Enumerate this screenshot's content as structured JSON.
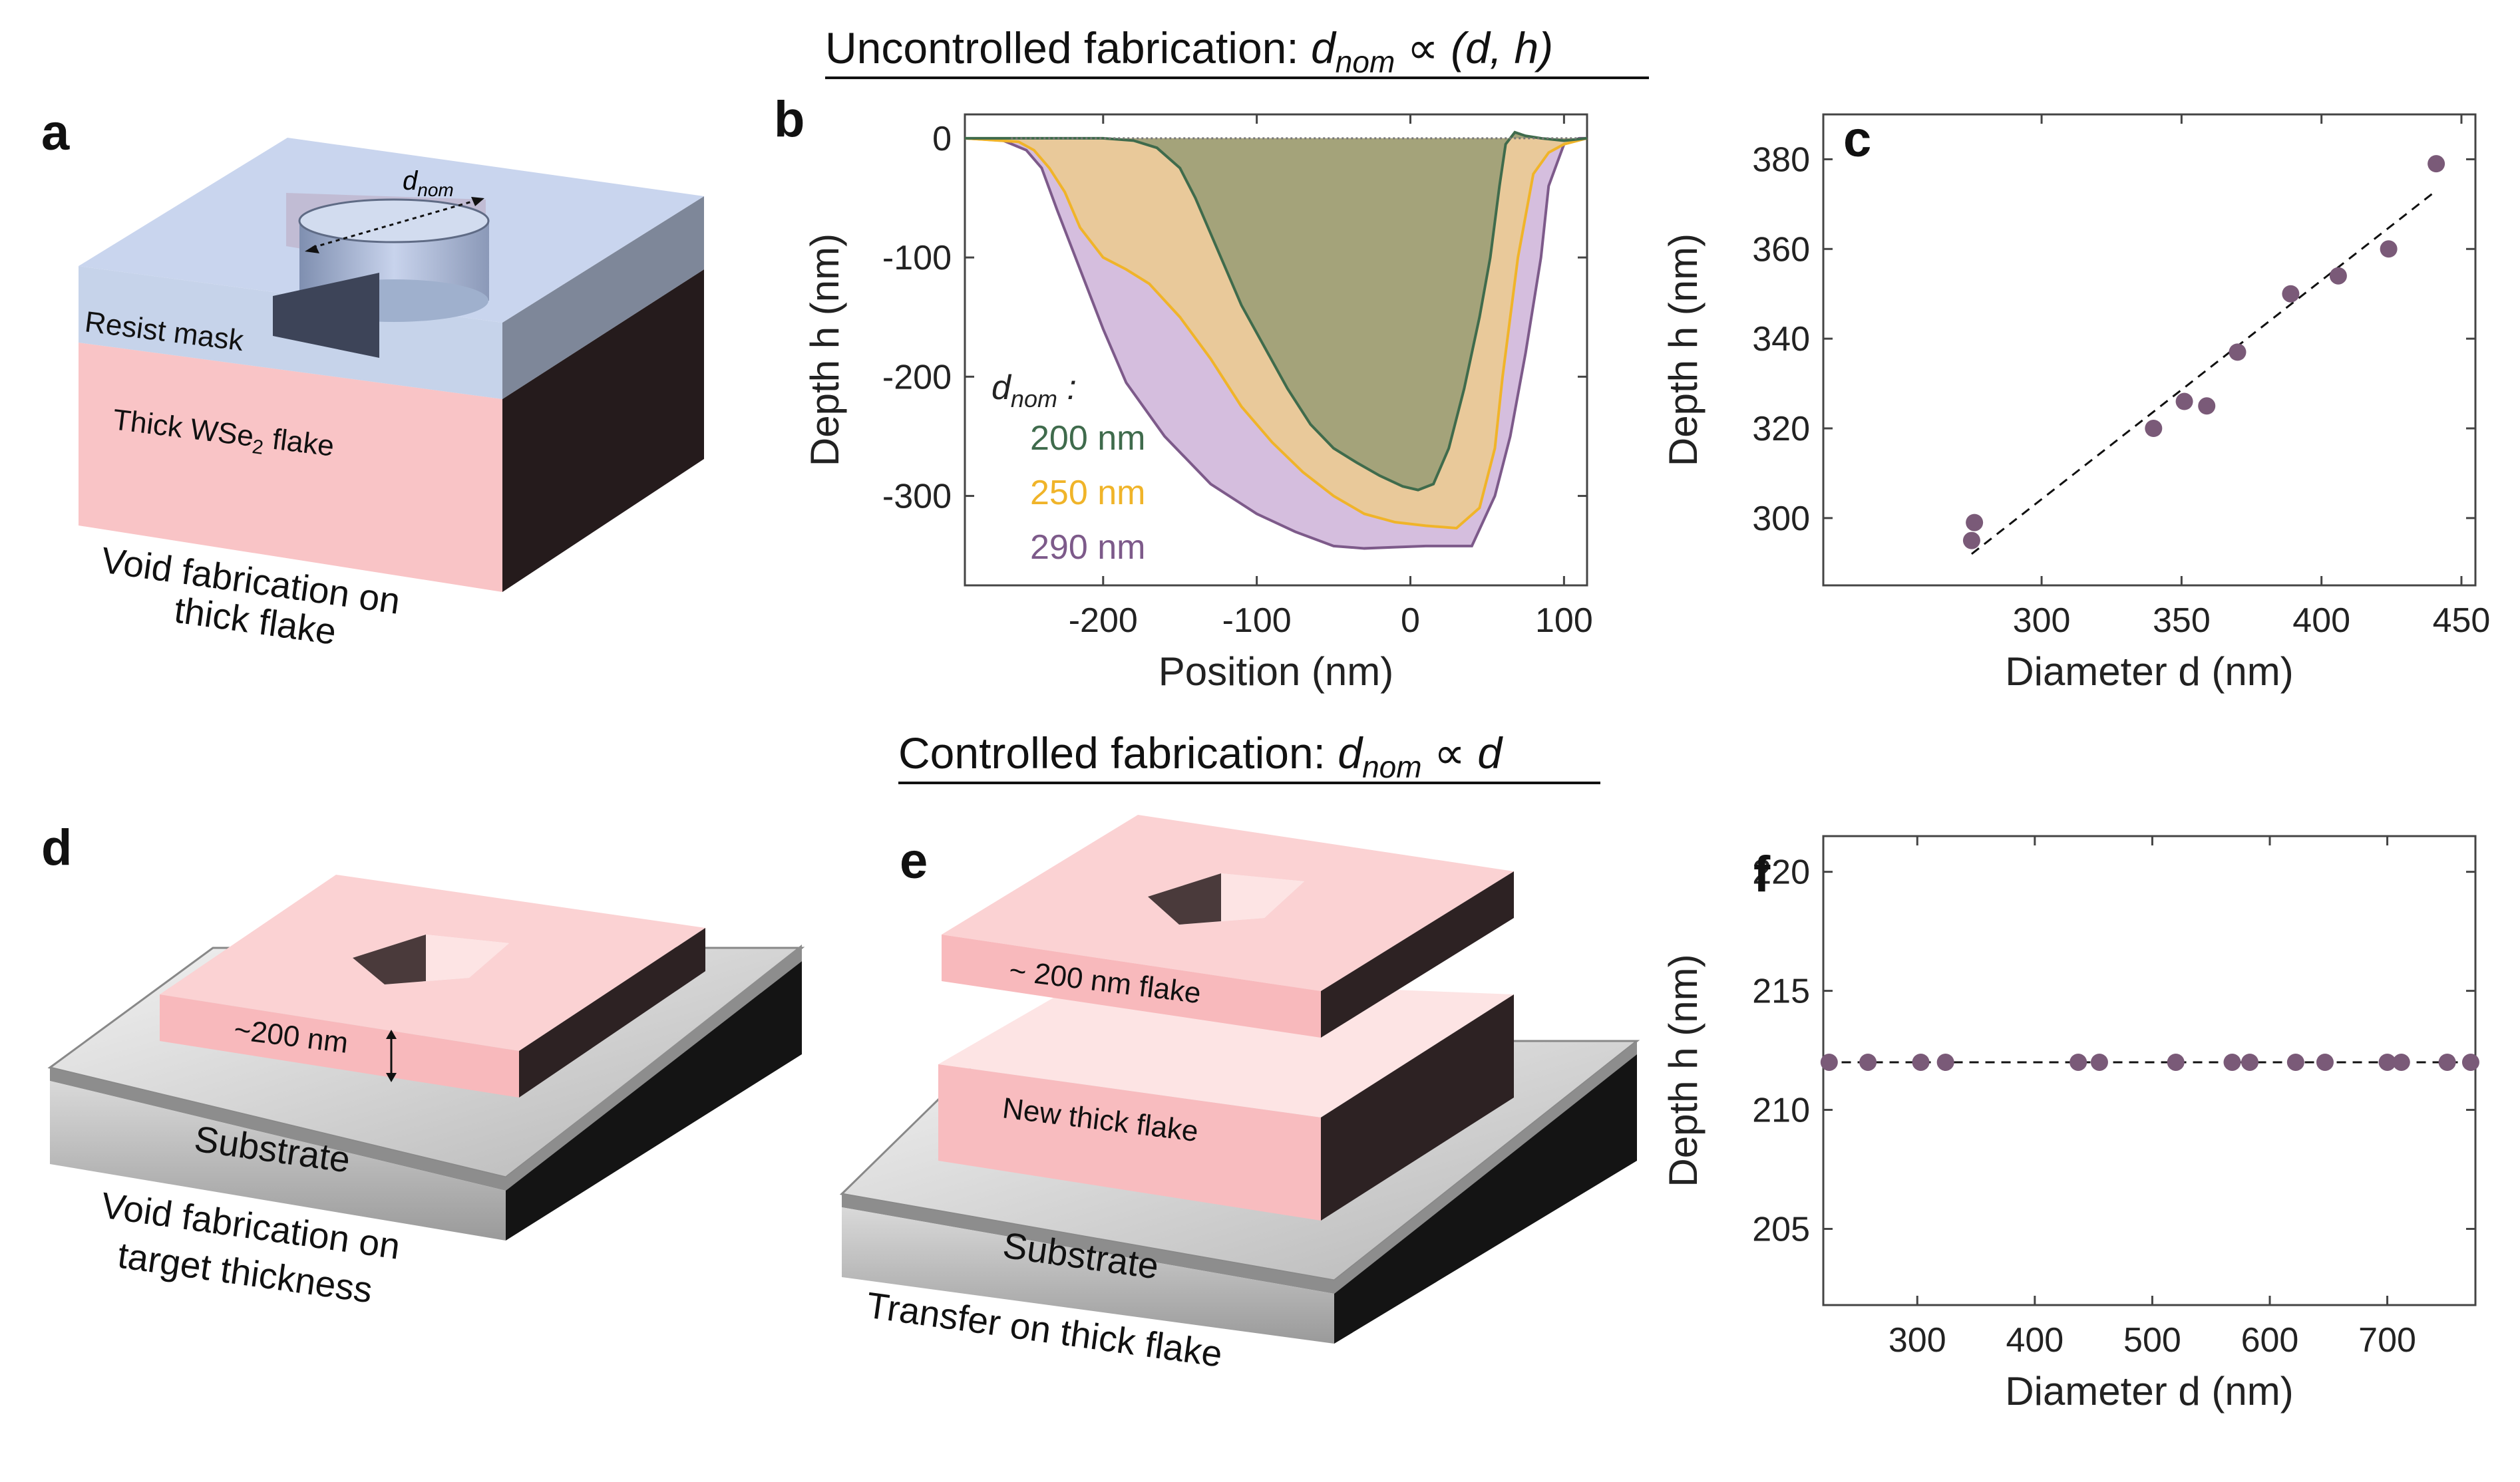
{
  "header_top": {
    "prefix": "Uncontrolled fabrication: ",
    "symbol": "d",
    "sub": "nom",
    "suffix": " ∝ (d, h)"
  },
  "header_mid": {
    "prefix": "Controlled fabrication: ",
    "symbol": "d",
    "sub": "nom",
    "suffix": " ∝ d"
  },
  "panel_a": {
    "letter": "a",
    "dnom_symbol": "d",
    "dnom_sub": "nom",
    "resist_label": "Resist mask",
    "flake_prefix": "Thick WSe",
    "flake_sub": "2",
    "flake_suffix": " flake",
    "caption_line1": "Void fabrication on",
    "caption_line2": "thick flake"
  },
  "panel_d": {
    "letter": "d",
    "thickness_label": "~200 nm",
    "substrate_label": "Substrate",
    "caption_line1": "Void fabrication on",
    "caption_line2": "target thickness"
  },
  "panel_e": {
    "letter": "e",
    "top_flake_label": "~ 200 nm flake",
    "bottom_flake_label": "New thick flake",
    "substrate_label": "Substrate",
    "caption": "Transfer on thick flake"
  },
  "chart_data": [
    {
      "panel": "b",
      "type": "area",
      "xlabel": "Position (nm)",
      "ylabel": "Depth h (nm)",
      "xlim": [
        -290,
        115
      ],
      "ylim": [
        -375,
        20
      ],
      "xticks": [
        -200,
        -100,
        0,
        100
      ],
      "yticks": [
        0,
        -100,
        -200,
        -300
      ],
      "legend_title_symbol": "d",
      "legend_title_sub": "nom",
      "legend_title_suffix": ":",
      "series": [
        {
          "name": "290 nm",
          "color": "#7d5a8a",
          "fill": "#d5bede",
          "x": [
            -290,
            -265,
            -250,
            -240,
            -230,
            -215,
            -200,
            -185,
            -160,
            -130,
            -100,
            -75,
            -50,
            -30,
            -10,
            10,
            40,
            55,
            65,
            75,
            85,
            90,
            100,
            110,
            115
          ],
          "y": [
            0,
            -2,
            -10,
            -25,
            -60,
            -110,
            -160,
            -205,
            -250,
            -290,
            -315,
            -330,
            -342,
            -344,
            -343,
            -342,
            -342,
            -300,
            -250,
            -180,
            -100,
            -40,
            -5,
            0,
            0
          ]
        },
        {
          "name": "250 nm",
          "color": "#f0b429",
          "fill": "#e9c99a",
          "x": [
            -290,
            -255,
            -245,
            -235,
            -225,
            -215,
            -200,
            -185,
            -170,
            -150,
            -130,
            -110,
            -90,
            -70,
            -50,
            -30,
            -10,
            10,
            30,
            45,
            55,
            60,
            70,
            80,
            90,
            100,
            115
          ],
          "y": [
            0,
            -3,
            -10,
            -25,
            -45,
            -75,
            -100,
            -110,
            -122,
            -150,
            -185,
            -225,
            -255,
            -280,
            -300,
            -315,
            -322,
            -325,
            -327,
            -310,
            -260,
            -200,
            -100,
            -30,
            -12,
            -5,
            0
          ]
        },
        {
          "name": "200 nm",
          "color": "#3f6b4c",
          "fill": "#a4a37a",
          "x": [
            -290,
            -200,
            -180,
            -165,
            -150,
            -140,
            -130,
            -120,
            -110,
            -95,
            -80,
            -65,
            -50,
            -35,
            -20,
            -5,
            5,
            15,
            25,
            35,
            45,
            52,
            58,
            62,
            68,
            75,
            85,
            100,
            115
          ],
          "y": [
            0,
            0,
            -2,
            -8,
            -25,
            -50,
            -80,
            -110,
            -140,
            -175,
            -210,
            -240,
            -260,
            -272,
            -283,
            -292,
            -295,
            -290,
            -260,
            -210,
            -150,
            -100,
            -40,
            -5,
            5,
            2,
            0,
            -2,
            0
          ]
        }
      ]
    },
    {
      "panel": "c",
      "type": "scatter",
      "xlabel": "Diameter d (nm)",
      "ylabel": "Depth h (nm)",
      "xlim": [
        222,
        455
      ],
      "ylim": [
        285,
        390
      ],
      "xticks": [
        300,
        350,
        400,
        450
      ],
      "yticks": [
        300,
        320,
        340,
        360,
        380
      ],
      "point_color": "#7a5a78",
      "x": [
        275,
        276,
        340,
        351,
        359,
        370,
        389,
        406,
        424,
        441
      ],
      "y": [
        295,
        299,
        320,
        326,
        325,
        337,
        350,
        354,
        360,
        379
      ],
      "fit": {
        "x": [
          275,
          441
        ],
        "y": [
          292,
          373
        ]
      }
    },
    {
      "panel": "f",
      "type": "scatter",
      "xlabel": "Diameter d (nm)",
      "ylabel": "Depth h (nm)",
      "xlim": [
        220,
        775
      ],
      "ylim": [
        201.8,
        221.5
      ],
      "xticks": [
        300,
        400,
        500,
        600,
        700
      ],
      "yticks": [
        205,
        210,
        215,
        220
      ],
      "point_color": "#7a5a78",
      "x": [
        225,
        258,
        303,
        324,
        437,
        455,
        520,
        568,
        583,
        622,
        647,
        700,
        712,
        751,
        771
      ],
      "y": [
        212,
        212,
        212,
        212,
        212,
        212,
        212,
        212,
        212,
        212,
        212,
        212,
        212,
        212,
        212
      ],
      "fit": {
        "x": [
          222,
          775
        ],
        "y": [
          212,
          212
        ]
      }
    }
  ]
}
